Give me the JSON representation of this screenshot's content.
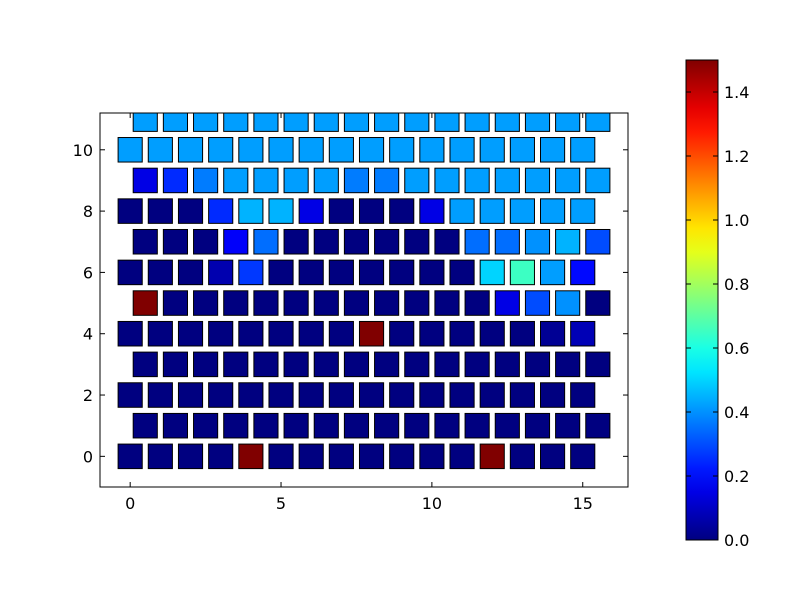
{
  "chart_data": {
    "type": "heatmap",
    "title": "",
    "xlabel": "",
    "ylabel": "",
    "xlim": [
      -1,
      16.5
    ],
    "ylim": [
      -1,
      11.2
    ],
    "xticks": [
      0,
      5,
      10,
      15
    ],
    "yticks": [
      0,
      2,
      4,
      6,
      8,
      10
    ],
    "grid": false,
    "colormap": "jet",
    "colorbar": {
      "range": [
        0,
        1.5
      ],
      "ticks": [
        0.0,
        0.2,
        0.4,
        0.6,
        0.8,
        1.0,
        1.2,
        1.4
      ]
    },
    "cell_shape": "rectangle",
    "row_offset_odd": 0.5,
    "rows": [
      {
        "y": 0,
        "values": [
          0,
          0,
          0,
          0,
          1.5,
          0,
          0,
          0,
          0,
          0,
          0,
          0,
          1.5,
          0,
          0,
          0
        ]
      },
      {
        "y": 1,
        "values": [
          0,
          0,
          0,
          0,
          0,
          0,
          0,
          0,
          0,
          0,
          0,
          0,
          0,
          0,
          0,
          0
        ]
      },
      {
        "y": 2,
        "values": [
          0,
          0,
          0,
          0,
          0,
          0,
          0,
          0,
          0,
          0,
          0,
          0,
          0,
          0,
          0,
          0
        ]
      },
      {
        "y": 3,
        "values": [
          0,
          0,
          0,
          0,
          0,
          0,
          0,
          0,
          0,
          0,
          0,
          0,
          0,
          0,
          0,
          0
        ]
      },
      {
        "y": 4,
        "values": [
          0,
          0,
          0,
          0,
          0,
          0,
          0,
          0,
          1.5,
          0,
          0,
          0,
          0,
          0,
          0.03,
          0.08
        ]
      },
      {
        "y": 5,
        "values": [
          1.5,
          0,
          0,
          0,
          0,
          0,
          0,
          0,
          0,
          0,
          0,
          0,
          0.15,
          0.3,
          0.4,
          0
        ]
      },
      {
        "y": 6,
        "values": [
          0,
          0,
          0,
          0.07,
          0.27,
          0,
          0,
          0,
          0,
          0,
          0,
          0,
          0.5,
          0.65,
          0.42,
          0.2
        ]
      },
      {
        "y": 7,
        "values": [
          0,
          0,
          0,
          0.18,
          0.35,
          0,
          0,
          0,
          0,
          0,
          0,
          0.35,
          0.35,
          0.4,
          0.45,
          0.3
        ]
      },
      {
        "y": 8,
        "values": [
          0,
          0,
          0,
          0.25,
          0.45,
          0.45,
          0.15,
          0,
          0,
          0,
          0.15,
          0.42,
          0.42,
          0.42,
          0.42,
          0.42
        ]
      },
      {
        "y": 9,
        "values": [
          0.15,
          0.25,
          0.37,
          0.42,
          0.42,
          0.42,
          0.42,
          0.37,
          0.37,
          0.42,
          0.42,
          0.42,
          0.42,
          0.42,
          0.42,
          0.42
        ]
      },
      {
        "y": 10,
        "values": [
          0.42,
          0.42,
          0.42,
          0.42,
          0.42,
          0.42,
          0.42,
          0.42,
          0.42,
          0.42,
          0.42,
          0.42,
          0.42,
          0.42,
          0.42,
          0.42
        ]
      },
      {
        "y": 11,
        "values": [
          0.42,
          0.42,
          0.42,
          0.42,
          0.42,
          0.42,
          0.42,
          0.42,
          0.42,
          0.42,
          0.42,
          0.42,
          0.42,
          0.42,
          0.42,
          0.42
        ]
      }
    ]
  }
}
